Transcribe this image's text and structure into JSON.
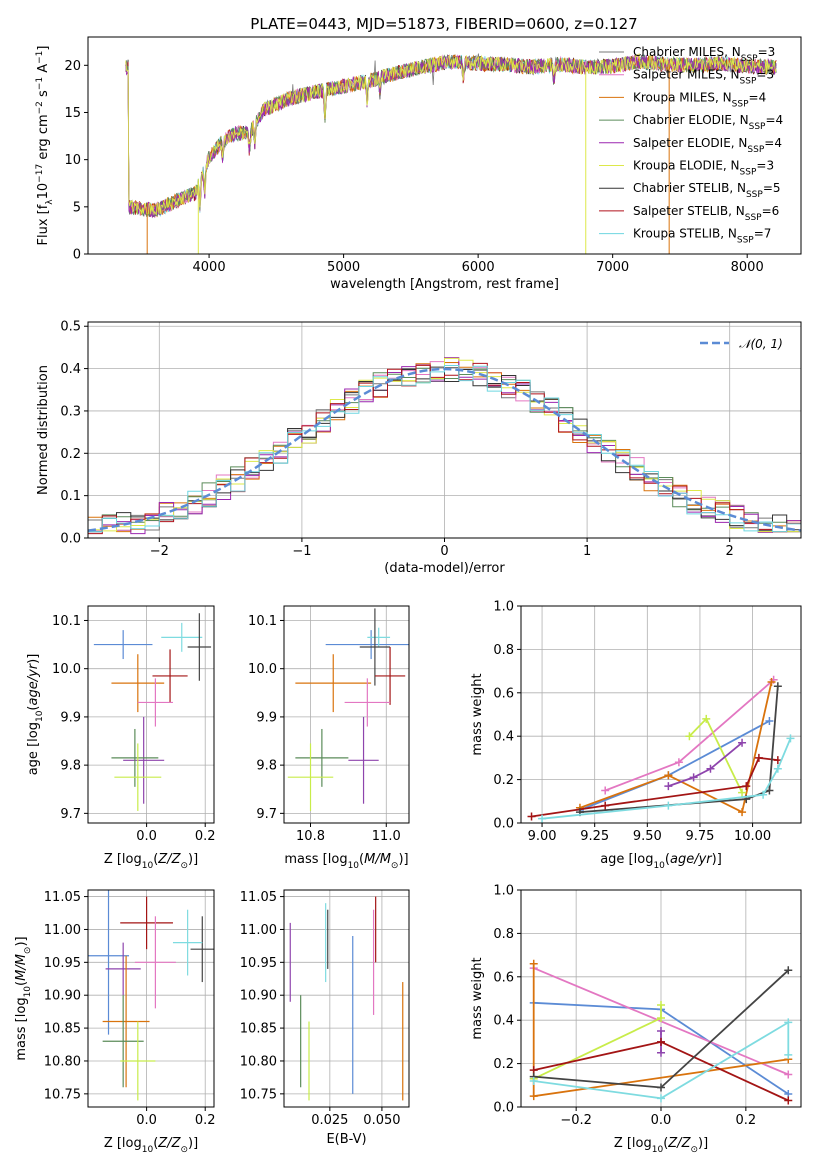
{
  "title": "PLATE=0443, MJD=51873, FIBERID=0600, z=0.127",
  "colors": {
    "chabrier_miles": "#777777",
    "salpeter_miles": "#e377c2",
    "kroupa_miles": "#d9730d",
    "chabrier_elodie": "#5b8c5a",
    "salpeter_elodie": "#9c27b0",
    "kroupa_elodie": "#dde84a",
    "chabrier_stelib": "#333333",
    "salpeter_stelib": "#b0121b",
    "kroupa_stelib": "#6ed6e0",
    "gauss": "#5b8bd5",
    "blue": "#5b8bd5",
    "orange": "#d9730d",
    "lime": "#c8ec4a",
    "purple": "#8e44ad",
    "red": "#a31515",
    "pink": "#e377c2",
    "dark": "#444444",
    "cyan": "#7edbe0",
    "green": "#5b8c5a"
  },
  "chart_data": [
    {
      "id": "spectrum",
      "type": "line",
      "xlabel": "wavelength [Angstrom, rest frame]",
      "ylabel": "Flux [f_λ 10^-17 erg cm^-2 s^-1 A^-1]",
      "xlim": [
        3100,
        8400
      ],
      "ylim": [
        0,
        23
      ],
      "xticks": [
        "4000",
        "5000",
        "6000",
        "7000",
        "8000"
      ],
      "yticks": [
        "0",
        "5",
        "10",
        "15",
        "20"
      ],
      "continuum": [
        {
          "x": 3400,
          "y": 5.0
        },
        {
          "x": 3600,
          "y": 4.6
        },
        {
          "x": 3750,
          "y": 5.6
        },
        {
          "x": 3900,
          "y": 6.5
        },
        {
          "x": 4000,
          "y": 10.2
        },
        {
          "x": 4100,
          "y": 12.0
        },
        {
          "x": 4200,
          "y": 12.8
        },
        {
          "x": 4300,
          "y": 12.8
        },
        {
          "x": 4400,
          "y": 15.2
        },
        {
          "x": 4600,
          "y": 16.5
        },
        {
          "x": 4800,
          "y": 17.2
        },
        {
          "x": 5000,
          "y": 17.8
        },
        {
          "x": 5200,
          "y": 18.4
        },
        {
          "x": 5400,
          "y": 19.2
        },
        {
          "x": 5600,
          "y": 19.9
        },
        {
          "x": 5800,
          "y": 20.4
        },
        {
          "x": 6000,
          "y": 20.2
        },
        {
          "x": 6200,
          "y": 20.1
        },
        {
          "x": 6400,
          "y": 19.8
        },
        {
          "x": 6600,
          "y": 20.1
        },
        {
          "x": 6800,
          "y": 19.8
        },
        {
          "x": 7000,
          "y": 19.9
        },
        {
          "x": 7200,
          "y": 20.4
        },
        {
          "x": 7400,
          "y": 20.1
        },
        {
          "x": 7600,
          "y": 20.0
        },
        {
          "x": 7800,
          "y": 20.2
        },
        {
          "x": 8000,
          "y": 19.9
        },
        {
          "x": 8200,
          "y": 19.8
        }
      ],
      "series": [
        {
          "name": "Chabrier MILES, N_SSP=3",
          "color_key": "chabrier_miles"
        },
        {
          "name": "Salpeter MILES, N_SSP=3",
          "color_key": "salpeter_miles"
        },
        {
          "name": "Kroupa MILES, N_SSP=4",
          "color_key": "kroupa_miles"
        },
        {
          "name": "Chabrier ELODIE, N_SSP=4",
          "color_key": "chabrier_elodie"
        },
        {
          "name": "Salpeter ELODIE, N_SSP=4",
          "color_key": "salpeter_elodie"
        },
        {
          "name": "Kroupa ELODIE, N_SSP=3",
          "color_key": "kroupa_elodie"
        },
        {
          "name": "Chabrier STELIB, N_SSP=5",
          "color_key": "chabrier_stelib"
        },
        {
          "name": "Salpeter STELIB, N_SSP=6",
          "color_key": "salpeter_stelib"
        },
        {
          "name": "Kroupa STELIB, N_SSP=7",
          "color_key": "kroupa_stelib"
        }
      ],
      "dropouts": [
        {
          "x": 3920,
          "color_key": "kroupa_elodie"
        },
        {
          "x": 3540,
          "color_key": "kroupa_miles"
        },
        {
          "x": 6800,
          "color_key": "kroupa_elodie"
        },
        {
          "x": 7420,
          "color_key": "kroupa_miles"
        }
      ]
    },
    {
      "id": "residuals",
      "type": "step",
      "xlabel": "(data-model)/error",
      "ylabel": "Normed distribution",
      "xlim": [
        -2.5,
        2.5
      ],
      "ylim": [
        0,
        0.51
      ],
      "xticks": [
        "-2",
        "-1",
        "0",
        "1",
        "2"
      ],
      "yticks": [
        "0.0",
        "0.1",
        "0.2",
        "0.3",
        "0.4",
        "0.5"
      ],
      "legend": "𝒩(0, 1)",
      "bin_width": 0.1
    },
    {
      "id": "age_vs_Z",
      "type": "errorbar",
      "xlabel": "Z [log10(Z/Z⊙)]",
      "ylabel": "age [log10(age/yr)]",
      "xlim": [
        -0.2,
        0.23
      ],
      "ylim": [
        9.68,
        10.13
      ],
      "xticks": [
        "0.0",
        "0.2"
      ],
      "yticks": [
        "9.7",
        "9.8",
        "9.9",
        "10.0",
        "10.1"
      ],
      "points": [
        {
          "c": "blue",
          "x": -0.08,
          "xe": 0.1,
          "y": 10.05,
          "ye": 0.03
        },
        {
          "c": "cyan",
          "x": 0.12,
          "xe": 0.07,
          "y": 10.065,
          "ye": 0.03
        },
        {
          "c": "dark",
          "x": 0.18,
          "xe": 0.04,
          "y": 10.045,
          "ye": 0.07
        },
        {
          "c": "red",
          "x": 0.08,
          "xe": 0.06,
          "y": 9.985,
          "ye": 0.055
        },
        {
          "c": "orange",
          "x": -0.03,
          "xe": 0.09,
          "y": 9.97,
          "ye": 0.06
        },
        {
          "c": "pink",
          "x": 0.03,
          "xe": 0.06,
          "y": 9.93,
          "ye": 0.05
        },
        {
          "c": "purple",
          "x": -0.01,
          "xe": 0.07,
          "y": 9.81,
          "ye": 0.09
        },
        {
          "c": "green",
          "x": -0.04,
          "xe": 0.08,
          "y": 9.815,
          "ye": 0.06
        },
        {
          "c": "lime",
          "x": -0.03,
          "xe": 0.08,
          "y": 9.775,
          "ye": 0.07
        }
      ]
    },
    {
      "id": "age_vs_mass",
      "type": "errorbar",
      "xlabel": "mass [log10(M/M⊙)]",
      "ylabel": "",
      "xlim": [
        10.73,
        11.06
      ],
      "ylim": [
        9.68,
        10.13
      ],
      "xticks": [
        "10.8",
        "11.0"
      ],
      "yticks": [
        "9.7",
        "9.8",
        "9.9",
        "10.0",
        "10.1"
      ],
      "points": [
        {
          "c": "blue",
          "x": 10.96,
          "xe": 0.12,
          "y": 10.05,
          "ye": 0.03
        },
        {
          "c": "cyan",
          "x": 10.98,
          "xe": 0.03,
          "y": 10.065,
          "ye": 0.02
        },
        {
          "c": "dark",
          "x": 10.97,
          "xe": 0.04,
          "y": 10.045,
          "ye": 0.08
        },
        {
          "c": "red",
          "x": 11.01,
          "xe": 0.04,
          "y": 9.985,
          "ye": 0.06
        },
        {
          "c": "orange",
          "x": 10.86,
          "xe": 0.1,
          "y": 9.97,
          "ye": 0.06
        },
        {
          "c": "pink",
          "x": 10.95,
          "xe": 0.06,
          "y": 9.93,
          "ye": 0.05
        },
        {
          "c": "purple",
          "x": 10.94,
          "xe": 0.04,
          "y": 9.81,
          "ye": 0.09
        },
        {
          "c": "green",
          "x": 10.83,
          "xe": 0.07,
          "y": 9.815,
          "ye": 0.06
        },
        {
          "c": "lime",
          "x": 10.8,
          "xe": 0.06,
          "y": 9.775,
          "ye": 0.07
        }
      ]
    },
    {
      "id": "mass_vs_Z",
      "type": "errorbar",
      "xlabel": "Z [log10(Z/Z⊙)]",
      "ylabel": "mass [log10(M/M⊙)]",
      "xlim": [
        -0.2,
        0.23
      ],
      "ylim": [
        10.73,
        11.06
      ],
      "xticks": [
        "0.0",
        "0.2"
      ],
      "yticks": [
        "10.75",
        "10.80",
        "10.85",
        "10.90",
        "10.95",
        "11.00",
        "11.05"
      ],
      "points": [
        {
          "c": "red",
          "x": 0.0,
          "xe": 0.09,
          "y": 11.01,
          "ye": 0.04
        },
        {
          "c": "dark",
          "x": 0.19,
          "xe": 0.04,
          "y": 10.97,
          "ye": 0.05
        },
        {
          "c": "cyan",
          "x": 0.14,
          "xe": 0.05,
          "y": 10.98,
          "ye": 0.05
        },
        {
          "c": "blue",
          "x": -0.13,
          "xe": 0.07,
          "y": 10.96,
          "ye": 0.12
        },
        {
          "c": "purple",
          "x": -0.08,
          "xe": 0.06,
          "y": 10.94,
          "ye": 0.04
        },
        {
          "c": "pink",
          "x": 0.03,
          "xe": 0.07,
          "y": 10.95,
          "ye": 0.07
        },
        {
          "c": "orange",
          "x": -0.07,
          "xe": 0.08,
          "y": 10.86,
          "ye": 0.1
        },
        {
          "c": "green",
          "x": -0.08,
          "xe": 0.07,
          "y": 10.83,
          "ye": 0.07
        },
        {
          "c": "lime",
          "x": -0.03,
          "xe": 0.06,
          "y": 10.8,
          "ye": 0.06
        }
      ]
    },
    {
      "id": "mass_vs_ebv",
      "type": "errorbar",
      "xlabel": "E(B-V)",
      "ylabel": "",
      "xlim": [
        0.003,
        0.063
      ],
      "ylim": [
        10.73,
        11.06
      ],
      "xticks": [
        "0.025",
        "0.050"
      ],
      "yticks": [
        "10.75",
        "10.80",
        "10.85",
        "10.90",
        "10.95",
        "11.00",
        "11.05"
      ],
      "points": [
        {
          "c": "purple",
          "x": 0.006,
          "xe": 0,
          "y": 10.95,
          "ye": 0.06
        },
        {
          "c": "green",
          "x": 0.011,
          "xe": 0,
          "y": 10.83,
          "ye": 0.07
        },
        {
          "c": "lime",
          "x": 0.015,
          "xe": 0,
          "y": 10.8,
          "ye": 0.06
        },
        {
          "c": "cyan",
          "x": 0.023,
          "xe": 0,
          "y": 10.98,
          "ye": 0.06
        },
        {
          "c": "dark",
          "x": 0.024,
          "xe": 0,
          "y": 10.985,
          "ye": 0.045
        },
        {
          "c": "blue",
          "x": 0.036,
          "xe": 0,
          "y": 10.87,
          "ye": 0.12
        },
        {
          "c": "pink",
          "x": 0.046,
          "xe": 0,
          "y": 10.95,
          "ye": 0.08
        },
        {
          "c": "red",
          "x": 0.047,
          "xe": 0,
          "y": 11.0,
          "ye": 0.05
        },
        {
          "c": "orange",
          "x": 0.06,
          "xe": 0,
          "y": 10.83,
          "ye": 0.09
        }
      ]
    },
    {
      "id": "weight_vs_age",
      "type": "line",
      "xlabel": "age [log10(age/yr)]",
      "ylabel": "mass weight",
      "xlim": [
        8.9,
        10.23
      ],
      "ylim": [
        0,
        1
      ],
      "xticks": [
        "9.00",
        "9.25",
        "9.50",
        "9.75",
        "10.00"
      ],
      "yticks": [
        "0.0",
        "0.2",
        "0.4",
        "0.6",
        "0.8",
        "1.0"
      ],
      "series": [
        {
          "c": "blue",
          "points": [
            [
              9.18,
              0.06
            ],
            [
              9.6,
              0.22
            ],
            [
              10.08,
              0.47
            ]
          ]
        },
        {
          "c": "pink",
          "points": [
            [
              9.3,
              0.15
            ],
            [
              9.65,
              0.28
            ],
            [
              10.1,
              0.66
            ]
          ]
        },
        {
          "c": "orange",
          "points": [
            [
              9.18,
              0.07
            ],
            [
              9.6,
              0.22
            ],
            [
              9.95,
              0.05
            ],
            [
              10.09,
              0.65
            ]
          ]
        },
        {
          "c": "lime",
          "points": [
            [
              9.7,
              0.4
            ],
            [
              9.78,
              0.48
            ],
            [
              9.95,
              0.14
            ]
          ]
        },
        {
          "c": "purple",
          "points": [
            [
              9.6,
              0.17
            ],
            [
              9.72,
              0.21
            ],
            [
              9.8,
              0.25
            ],
            [
              9.95,
              0.37
            ]
          ]
        },
        {
          "c": "red",
          "points": [
            [
              8.95,
              0.03
            ],
            [
              9.3,
              0.08
            ],
            [
              9.97,
              0.17
            ],
            [
              10.03,
              0.3
            ],
            [
              10.12,
              0.29
            ]
          ]
        },
        {
          "c": "dark",
          "points": [
            [
              9.18,
              0.05
            ],
            [
              9.97,
              0.11
            ],
            [
              10.08,
              0.15
            ],
            [
              10.12,
              0.63
            ]
          ]
        },
        {
          "c": "cyan",
          "points": [
            [
              9.0,
              0.02
            ],
            [
              9.6,
              0.08
            ],
            [
              10.05,
              0.13
            ],
            [
              10.12,
              0.25
            ],
            [
              10.18,
              0.39
            ]
          ]
        }
      ]
    },
    {
      "id": "weight_vs_Z",
      "type": "line",
      "xlabel": "Z [log10(Z/Z⊙)]",
      "ylabel": "mass weight",
      "xlim": [
        -0.33,
        0.33
      ],
      "ylim": [
        0,
        1
      ],
      "xticks": [
        "-0.2",
        "0.0",
        "0.2"
      ],
      "yticks": [
        "0.0",
        "0.2",
        "0.4",
        "0.6",
        "0.8",
        "1.0"
      ],
      "series": [
        {
          "c": "blue",
          "points": [
            [
              -0.3,
              0.48
            ],
            [
              0.0,
              0.45
            ],
            [
              0.3,
              0.06
            ]
          ]
        },
        {
          "c": "pink",
          "points": [
            [
              -0.3,
              0.64
            ],
            [
              0.3,
              0.15
            ]
          ]
        },
        {
          "c": "orange",
          "points": [
            [
              -0.3,
              0.66
            ],
            [
              -0.3,
              0.05
            ],
            [
              0.3,
              0.22
            ]
          ]
        },
        {
          "c": "lime",
          "points": [
            [
              -0.3,
              0.13
            ],
            [
              0.0,
              0.41
            ],
            [
              0.0,
              0.47
            ]
          ]
        },
        {
          "c": "purple",
          "points": [
            [
              0.0,
              0.25
            ],
            [
              0.0,
              0.3
            ],
            [
              0.0,
              0.35
            ]
          ]
        },
        {
          "c": "red",
          "points": [
            [
              -0.3,
              0.17
            ],
            [
              0.0,
              0.3
            ],
            [
              0.3,
              0.03
            ]
          ]
        },
        {
          "c": "dark",
          "points": [
            [
              -0.3,
              0.14
            ],
            [
              0.0,
              0.09
            ],
            [
              0.3,
              0.63
            ]
          ]
        },
        {
          "c": "cyan",
          "points": [
            [
              -0.3,
              0.12
            ],
            [
              0.0,
              0.04
            ],
            [
              0.3,
              0.39
            ],
            [
              0.3,
              0.24
            ]
          ]
        }
      ]
    }
  ]
}
